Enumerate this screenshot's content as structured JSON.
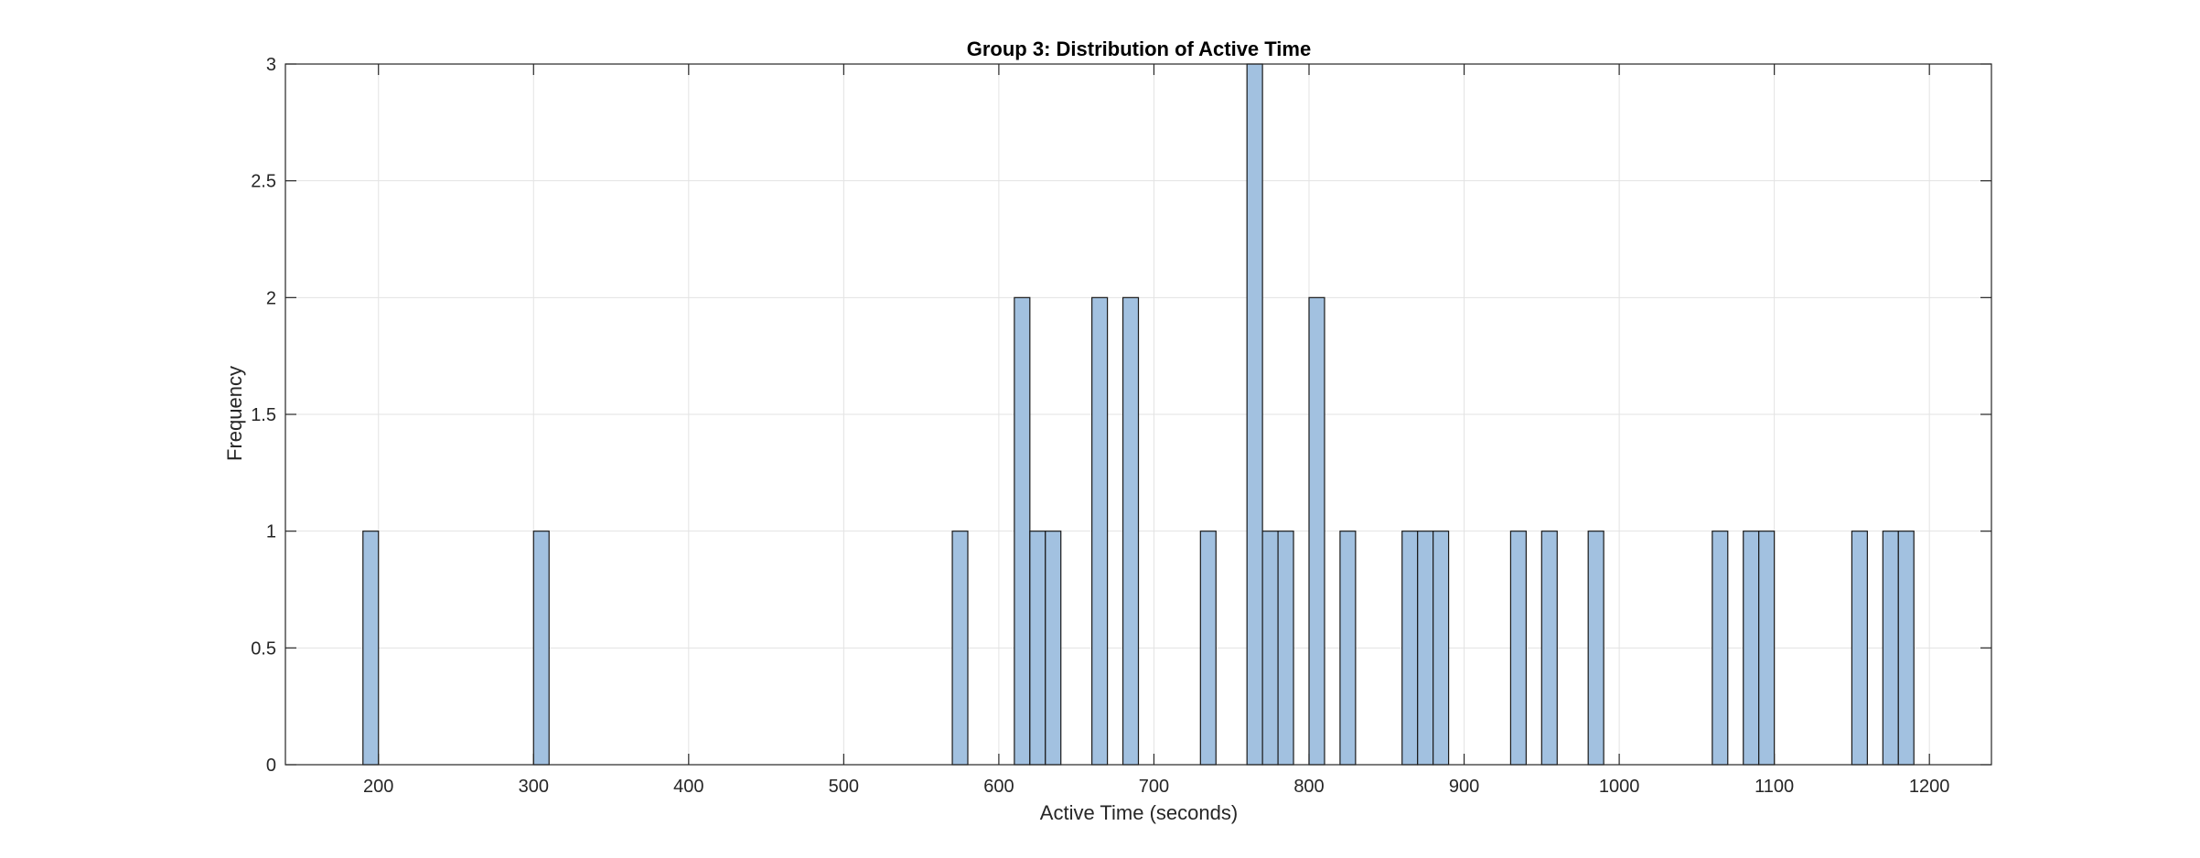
{
  "chart_data": {
    "type": "bar",
    "title": "Group 3: Distribution of Active Time",
    "xlabel": "Active Time (seconds)",
    "ylabel": "Frequency",
    "xlim": [
      140,
      1240
    ],
    "ylim": [
      0,
      3
    ],
    "xticks": [
      200,
      300,
      400,
      500,
      600,
      700,
      800,
      900,
      1000,
      1100,
      1200
    ],
    "yticks": [
      0,
      0.5,
      1,
      1.5,
      2,
      2.5,
      3
    ],
    "bin_width": 10,
    "grid": true,
    "bar_color": "#A2C1E0",
    "bar_edge_color": "#1a1a1a",
    "bins": [
      {
        "start": 190,
        "end": 200,
        "count": 1
      },
      {
        "start": 300,
        "end": 310,
        "count": 1
      },
      {
        "start": 570,
        "end": 580,
        "count": 1
      },
      {
        "start": 610,
        "end": 620,
        "count": 2
      },
      {
        "start": 620,
        "end": 630,
        "count": 1
      },
      {
        "start": 630,
        "end": 640,
        "count": 1
      },
      {
        "start": 660,
        "end": 670,
        "count": 2
      },
      {
        "start": 680,
        "end": 690,
        "count": 2
      },
      {
        "start": 730,
        "end": 740,
        "count": 1
      },
      {
        "start": 760,
        "end": 770,
        "count": 3
      },
      {
        "start": 770,
        "end": 780,
        "count": 1
      },
      {
        "start": 780,
        "end": 790,
        "count": 1
      },
      {
        "start": 800,
        "end": 810,
        "count": 2
      },
      {
        "start": 820,
        "end": 830,
        "count": 1
      },
      {
        "start": 860,
        "end": 870,
        "count": 1
      },
      {
        "start": 870,
        "end": 880,
        "count": 1
      },
      {
        "start": 880,
        "end": 890,
        "count": 1
      },
      {
        "start": 930,
        "end": 940,
        "count": 1
      },
      {
        "start": 950,
        "end": 960,
        "count": 1
      },
      {
        "start": 980,
        "end": 990,
        "count": 1
      },
      {
        "start": 1060,
        "end": 1070,
        "count": 1
      },
      {
        "start": 1080,
        "end": 1090,
        "count": 1
      },
      {
        "start": 1090,
        "end": 1100,
        "count": 1
      },
      {
        "start": 1150,
        "end": 1160,
        "count": 1
      },
      {
        "start": 1170,
        "end": 1180,
        "count": 1
      },
      {
        "start": 1180,
        "end": 1190,
        "count": 1
      }
    ]
  }
}
